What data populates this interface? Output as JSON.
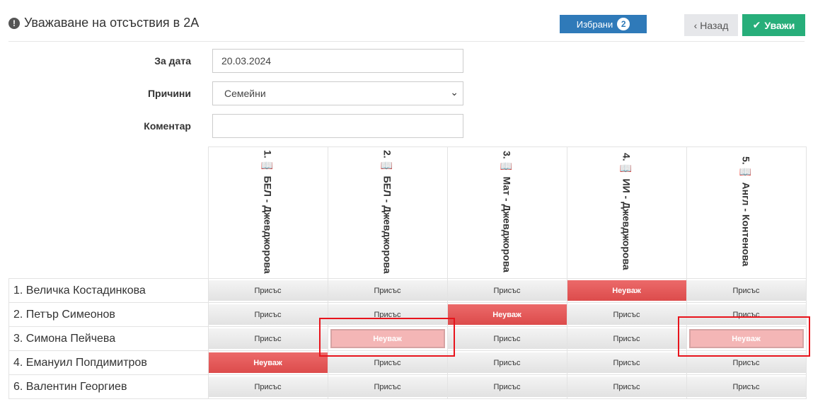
{
  "header": {
    "title": "Уважаване на отсъствия в 2А",
    "title_icon": "exclamation-circle-icon",
    "selected_label": "Избрани",
    "selected_count": "2",
    "back_label": "Назад",
    "excuse_label": "Уважи",
    "colors": {
      "primary": "#2f7ab9",
      "success": "#27ae7a",
      "danger": "#dc4b4b"
    }
  },
  "form": {
    "date_label": "За дата",
    "date_value": "20.03.2024",
    "reason_label": "Причини",
    "reason_value": "Семейни",
    "comment_label": "Коментар",
    "comment_value": ""
  },
  "grid": {
    "subjects": [
      "1. 📖 БЕЛ - Джевджорова",
      "2. 📖 БЕЛ - Джевджорова",
      "3. 📖 Мат - Джевджорова",
      "4. 📖 ИИ - Джевджорова",
      "5. 📖 Англ - Контенова"
    ],
    "students": [
      {
        "name": "1. Величка Костадинкова",
        "cells": [
          {
            "label": "Присъс",
            "status": "present"
          },
          {
            "label": "Присъс",
            "status": "present"
          },
          {
            "label": "Присъс",
            "status": "present"
          },
          {
            "label": "Неуваж",
            "status": "unexcused"
          },
          {
            "label": "Присъс",
            "status": "present"
          }
        ]
      },
      {
        "name": "2. Петър Симеонов",
        "cells": [
          {
            "label": "Присъс",
            "status": "present"
          },
          {
            "label": "Присъс",
            "status": "present"
          },
          {
            "label": "Неуваж",
            "status": "unexcused"
          },
          {
            "label": "Присъс",
            "status": "present"
          },
          {
            "label": "Присъс",
            "status": "present"
          }
        ]
      },
      {
        "name": "3. Симона Пейчева",
        "cells": [
          {
            "label": "Присъс",
            "status": "present"
          },
          {
            "label": "Неуваж",
            "status": "selected"
          },
          {
            "label": "Присъс",
            "status": "present"
          },
          {
            "label": "Присъс",
            "status": "present"
          },
          {
            "label": "Неуваж",
            "status": "selected"
          }
        ]
      },
      {
        "name": "4. Емануил Попдимитров",
        "cells": [
          {
            "label": "Неуваж",
            "status": "unexcused"
          },
          {
            "label": "Присъс",
            "status": "present"
          },
          {
            "label": "Присъс",
            "status": "present"
          },
          {
            "label": "Присъс",
            "status": "present"
          },
          {
            "label": "Присъс",
            "status": "present"
          }
        ]
      },
      {
        "name": "6. Валентин Георгиев",
        "cells": [
          {
            "label": "Присъс",
            "status": "present"
          },
          {
            "label": "Присъс",
            "status": "present"
          },
          {
            "label": "Присъс",
            "status": "present"
          },
          {
            "label": "Присъс",
            "status": "present"
          },
          {
            "label": "Присъс",
            "status": "present"
          }
        ]
      }
    ]
  }
}
